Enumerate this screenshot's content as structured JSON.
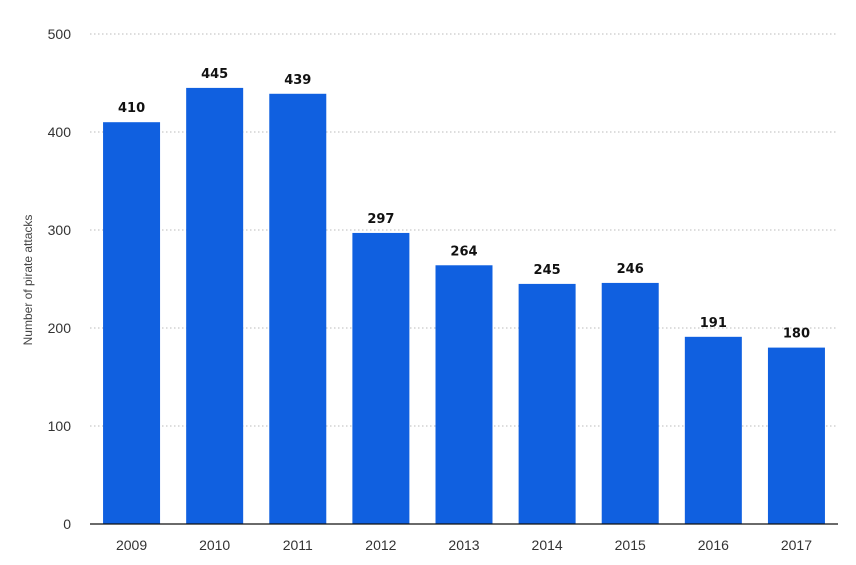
{
  "chart_data": {
    "type": "bar",
    "categories": [
      "2009",
      "2010",
      "2011",
      "2012",
      "2013",
      "2014",
      "2015",
      "2016",
      "2017"
    ],
    "values": [
      410,
      445,
      439,
      297,
      264,
      245,
      246,
      191,
      180
    ],
    "ylabel": "Number of pirate attacks",
    "ylim": [
      0,
      500
    ],
    "yticks": [
      0,
      100,
      200,
      300,
      400,
      500
    ],
    "grid": true,
    "legend": "none",
    "colors": {
      "bar": "#1060e0",
      "grid": "#bbbbbb",
      "axis": "#111111"
    }
  }
}
